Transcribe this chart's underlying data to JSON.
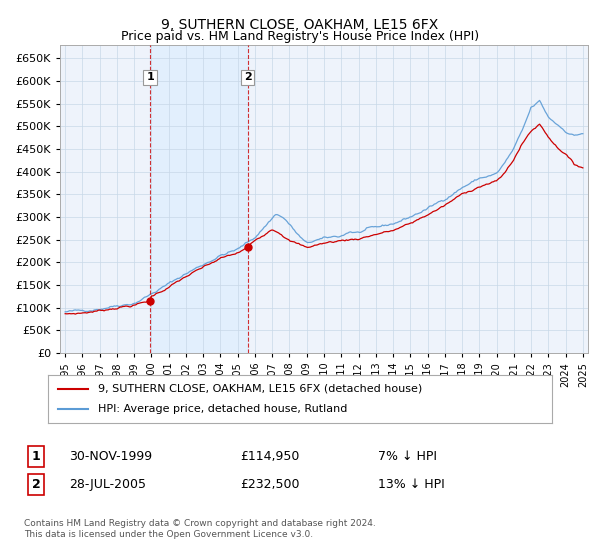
{
  "title": "9, SUTHERN CLOSE, OAKHAM, LE15 6FX",
  "subtitle": "Price paid vs. HM Land Registry's House Price Index (HPI)",
  "ylim": [
    0,
    680000
  ],
  "ytick_values": [
    0,
    50000,
    100000,
    150000,
    200000,
    250000,
    300000,
    350000,
    400000,
    450000,
    500000,
    550000,
    600000,
    650000
  ],
  "hpi_color": "#5b9bd5",
  "price_color": "#cc0000",
  "shade_color": "#ddeeff",
  "marker1_year": 1999.92,
  "marker1_value": 114950,
  "marker2_year": 2005.57,
  "marker2_value": 232500,
  "legend_label1": "9, SUTHERN CLOSE, OAKHAM, LE15 6FX (detached house)",
  "legend_label2": "HPI: Average price, detached house, Rutland",
  "transaction1": "30-NOV-1999",
  "price1": "£114,950",
  "hpi1": "7% ↓ HPI",
  "transaction2": "28-JUL-2005",
  "price2": "£232,500",
  "hpi2": "13% ↓ HPI",
  "footnote": "Contains HM Land Registry data © Crown copyright and database right 2024.\nThis data is licensed under the Open Government Licence v3.0.",
  "background_color": "#eef3fb",
  "xlim_left": 1994.7,
  "xlim_right": 2025.3
}
